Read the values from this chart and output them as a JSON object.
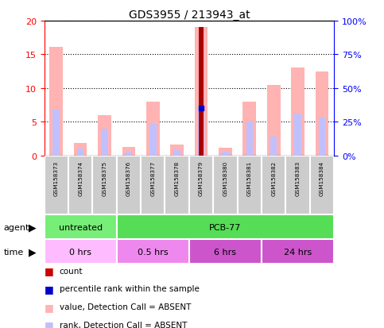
{
  "title": "GDS3955 / 213943_at",
  "samples": [
    "GSM158373",
    "GSM158374",
    "GSM158375",
    "GSM158376",
    "GSM158377",
    "GSM158378",
    "GSM158379",
    "GSM158380",
    "GSM158381",
    "GSM158382",
    "GSM158383",
    "GSM158384"
  ],
  "value_absent": [
    16.1,
    1.9,
    6.0,
    1.2,
    8.0,
    1.6,
    19.0,
    1.1,
    8.0,
    10.5,
    13.0,
    12.5
  ],
  "rank_absent": [
    6.8,
    1.0,
    4.0,
    0.5,
    4.7,
    0.8,
    7.0,
    0.5,
    5.0,
    2.8,
    6.2,
    5.6
  ],
  "count": [
    0,
    0,
    0,
    0,
    0,
    0,
    19.0,
    0,
    0,
    0,
    0,
    0
  ],
  "percentile_rank": [
    0,
    0,
    0,
    0,
    0,
    0,
    7.0,
    0,
    0,
    0,
    0,
    0
  ],
  "ylim_left": [
    0,
    20
  ],
  "ylim_right": [
    0,
    100
  ],
  "yticks_left": [
    0,
    5,
    10,
    15,
    20
  ],
  "ytick_labels_left": [
    "0",
    "5",
    "10",
    "15",
    "20"
  ],
  "yticks_right_vals": [
    0,
    25,
    50,
    75,
    100
  ],
  "ytick_labels_right": [
    "0%",
    "25%",
    "50%",
    "75%",
    "100%"
  ],
  "agent_groups": [
    {
      "label": "untreated",
      "start": 0,
      "end": 3,
      "color": "#77ee77"
    },
    {
      "label": "PCB-77",
      "start": 3,
      "end": 12,
      "color": "#55dd55"
    }
  ],
  "time_groups": [
    {
      "label": "0 hrs",
      "start": 0,
      "end": 3,
      "color": "#ffbbff"
    },
    {
      "label": "0.5 hrs",
      "start": 3,
      "end": 6,
      "color": "#ee88ee"
    },
    {
      "label": "6 hrs",
      "start": 6,
      "end": 9,
      "color": "#cc55cc"
    },
    {
      "label": "24 hrs",
      "start": 9,
      "end": 12,
      "color": "#cc55cc"
    }
  ],
  "color_value_absent": "#ffb3b3",
  "color_rank_absent": "#c0c0ff",
  "color_count": "#aa0000",
  "color_percentile": "#0000cc",
  "grid_color": "black",
  "bg_color": "white",
  "sample_box_color": "#cccccc",
  "legend_items": [
    {
      "color": "#cc0000",
      "label": "count"
    },
    {
      "color": "#0000cc",
      "label": "percentile rank within the sample"
    },
    {
      "color": "#ffb3b3",
      "label": "value, Detection Call = ABSENT"
    },
    {
      "color": "#c0c0ff",
      "label": "rank, Detection Call = ABSENT"
    }
  ]
}
